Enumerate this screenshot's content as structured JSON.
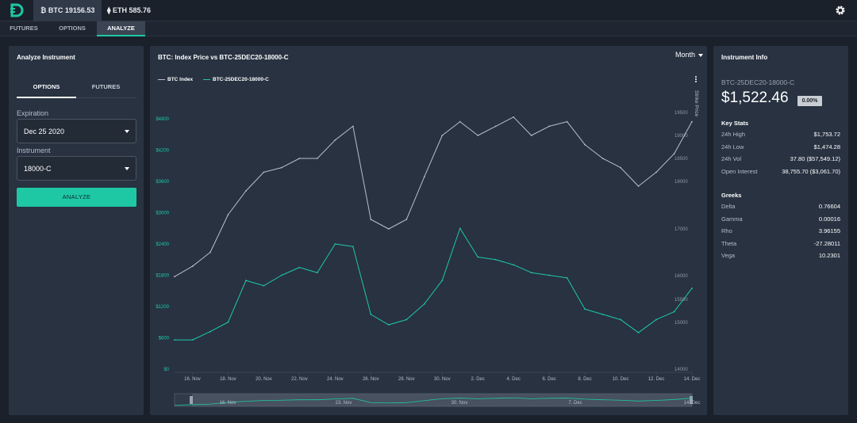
{
  "topbar": {
    "tickers": [
      {
        "label": "₿ BTC 19156.53",
        "active": true
      },
      {
        "label": "⧫ ETH 585.76",
        "active": false
      }
    ],
    "settings_icon": "gear-icon"
  },
  "subnav": {
    "tabs": [
      {
        "label": "FUTURES"
      },
      {
        "label": "OPTIONS"
      },
      {
        "label": "ANALYZE",
        "active": true
      }
    ]
  },
  "analyze": {
    "title": "Analyze Instrument",
    "tabs": [
      {
        "label": "OPTIONS",
        "active": true
      },
      {
        "label": "FUTURES"
      }
    ],
    "expiration_label": "Expiration",
    "expiration_value": "Dec 25 2020",
    "instrument_label": "Instrument",
    "instrument_value": "18000-C",
    "button": "ANALYZE"
  },
  "chart_panel": {
    "title": "BTC: Index Price vs BTC-25DEC20-18000-C",
    "range_select": "Month",
    "right_axis_title": "Strike Price"
  },
  "chart_data": {
    "type": "line",
    "x": [
      "15. Nov",
      "16. Nov",
      "17. Nov",
      "18. Nov",
      "19. Nov",
      "20. Nov",
      "21. Nov",
      "22. Nov",
      "23. Nov",
      "24. Nov",
      "25. Nov",
      "26. Nov",
      "27. Nov",
      "28. Nov",
      "29. Nov",
      "30. Nov",
      "1. Dec",
      "2. Dec",
      "3. Dec",
      "4. Dec",
      "5. Dec",
      "6. Dec",
      "7. Dec",
      "8. Dec",
      "9. Dec",
      "10. Dec",
      "11. Dec",
      "12. Dec",
      "13. Dec",
      "14. Dec"
    ],
    "x_ticks": [
      "16. Nov",
      "18. Nov",
      "20. Nov",
      "22. Nov",
      "24. Nov",
      "26. Nov",
      "28. Nov",
      "30. Nov",
      "2. Dec",
      "4. Dec",
      "6. Dec",
      "8. Dec",
      "10. Dec",
      "12. Dec",
      "14. Dec"
    ],
    "left_axis": {
      "ticks": [
        "$0",
        "$600",
        "$1200",
        "$1800",
        "$2400",
        "$3000",
        "$3600",
        "$4200",
        "$4800"
      ],
      "range": [
        0,
        4800
      ],
      "color": "#1ec8a5"
    },
    "right_axis": {
      "ticks": [
        "14000",
        "15000",
        "15500",
        "16000",
        "17000",
        "18000",
        "18500",
        "19000",
        "19500"
      ],
      "range": [
        14000,
        19500
      ],
      "color": "#8e98a5"
    },
    "series": [
      {
        "name": "BTC Index",
        "axis": "right",
        "color": "#b8bfc8",
        "values": [
          15980,
          16200,
          16500,
          17300,
          17800,
          18200,
          18300,
          18500,
          18500,
          18900,
          19200,
          17200,
          17000,
          17200,
          18100,
          19000,
          19300,
          19000,
          19200,
          19400,
          19000,
          19200,
          19300,
          18800,
          18500,
          18300,
          17900,
          18200,
          18600,
          19300
        ]
      },
      {
        "name": "BTC-25DEC20-18000-C",
        "axis": "left",
        "color": "#1ec8a5",
        "values": [
          560,
          560,
          720,
          900,
          1700,
          1600,
          1800,
          1950,
          1850,
          2400,
          2350,
          1050,
          850,
          950,
          1250,
          1700,
          2700,
          2150,
          2100,
          2000,
          1850,
          1800,
          1750,
          1150,
          1050,
          950,
          700,
          950,
          1100,
          1550
        ]
      }
    ],
    "grid": false,
    "legend": "top-left"
  },
  "navigator": {
    "labels": [
      "16. Nov",
      "23. Nov",
      "30. Nov",
      "7. Dec",
      "14. Dec"
    ]
  },
  "info": {
    "title": "Instrument Info",
    "instrument": "BTC-25DEC20-18000-C",
    "price": "$1,522.46",
    "change": "0.00%",
    "key_stats_title": "Key Stats",
    "key_stats": [
      {
        "label": "24h High",
        "value": "$1,753.72"
      },
      {
        "label": "24h Low",
        "value": "$1,474.28"
      },
      {
        "label": "24h Vol",
        "value": "37.80 ($57,549.12)"
      },
      {
        "label": "Open Interest",
        "value": "38,755.70 ($3,061.70)"
      }
    ],
    "greeks_title": "Greeks",
    "greeks": [
      {
        "label": "Delta",
        "value": "0.76604"
      },
      {
        "label": "Gamma",
        "value": "0.00016"
      },
      {
        "label": "Rho",
        "value": "3.96155"
      },
      {
        "label": "Theta",
        "value": "-27.28011"
      },
      {
        "label": "Vega",
        "value": "10.2301"
      }
    ]
  }
}
